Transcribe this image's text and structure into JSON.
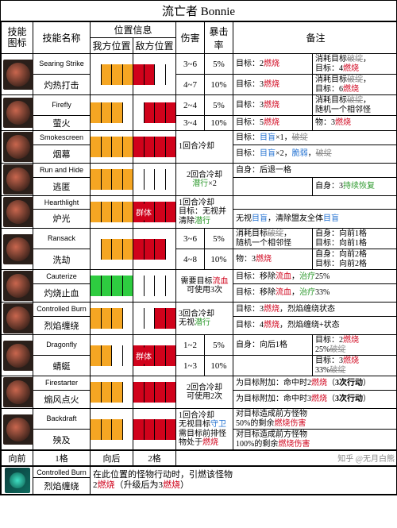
{
  "title": "流亡者 Bonnie",
  "columns": {
    "icon": "技能\n图标",
    "name": "技能名称",
    "posGroup": "位置信息",
    "posAlly": "我方位置",
    "posEnemy": "敌方位置",
    "dmg": "伤害",
    "crit": "暴击率",
    "note": "备注"
  },
  "groupLabel": "群体",
  "rows": [
    {
      "icon": true,
      "name_en": "Searing Strike",
      "name_cn": "灼热打击",
      "ally": [
        0,
        1,
        1,
        1
      ],
      "enemy": [
        1,
        1,
        0,
        0
      ],
      "base": {
        "dmg": "3~6",
        "crit": "5%",
        "note1": "目标：2<span class='kw-burn'>燃烧</span>",
        "note2": "消耗目标<span class='kw-strike'>破绽</span>，<br>目标：4<span class='kw-burn'>燃烧</span>"
      },
      "up": {
        "dmg": "4~7",
        "crit": "10%",
        "note1": "目标：3<span class='kw-burn'>燃烧</span>",
        "note2": "消耗目标<span class='kw-strike'>破绽</span>，<br>目标：6<span class='kw-burn'>燃烧</span>"
      }
    },
    {
      "icon": true,
      "name_en": "Firefly",
      "name_cn": "萤火",
      "ally": [
        1,
        1,
        1,
        0
      ],
      "enemy": [
        0,
        1,
        1,
        1
      ],
      "base": {
        "dmg": "2~4",
        "crit": "5%",
        "note1": "目标：3<span class='kw-burn'>燃烧</span>",
        "note2": "消耗目标<span class='kw-strike'>破绽</span>，<br>随机一个相邻怪"
      },
      "up": {
        "dmg": "3~4",
        "crit": "10%",
        "note1": "目标：5<span class='kw-burn'>燃烧</span>",
        "note2": "物：3<span class='kw-burn'>燃烧</span>"
      }
    },
    {
      "icon": true,
      "name_en": "Smokescreen",
      "name_cn": "烟幕",
      "ally": [
        1,
        1,
        1,
        1
      ],
      "enemy": [
        1,
        1,
        1,
        1
      ],
      "merged_dmg": "1回合冷却",
      "base": {
        "note1": "目标：<span class='kw-blue'>目盲</span>×1，<span class='kw-strike'>破绽</span>",
        "note2": ""
      },
      "up": {
        "note1": "目标：<span class='kw-blue'>目盲</span>×2，<span class='kw-blue'>脆弱</span>，<span class='kw-strike'>破绽</span>",
        "note2": ""
      }
    },
    {
      "icon": true,
      "name_en": "Run and Hide",
      "name_cn": "逃匿",
      "ally": [
        1,
        1,
        1,
        1
      ],
      "enemy": [
        0,
        0,
        0,
        0
      ],
      "merged_mid": "2回合冷却<br><span class='kw-green'>潜行</span>×2",
      "base": {
        "note1": "自身：后退一格",
        "note2": ""
      },
      "up": {
        "note1": "",
        "note2": "自身：3<span class='kw-green'>持续恢复</span>"
      }
    },
    {
      "icon": true,
      "name_en": "Hearthlight",
      "name_cn": "炉光",
      "ally": [
        1,
        1,
        1,
        1
      ],
      "enemy_group": true,
      "enemy": [
        1,
        1,
        1,
        1
      ],
      "merged_dmg": "1回合冷却<br>目标：无视并清除<span class='kw-green'>潜行</span>",
      "base": {
        "note1": "",
        "note2": ""
      },
      "up": {
        "note1": "无视<span class='kw-blue'>目盲</span>，清除盟友全体<span class='kw-blue'>目盲</span>",
        "note2": ""
      }
    },
    {
      "icon": true,
      "name_en": "Ransack",
      "name_cn": "洗劫",
      "ally": [
        0,
        1,
        1,
        1
      ],
      "enemy": [
        1,
        1,
        1,
        0
      ],
      "base": {
        "dmg": "3~6",
        "crit": "5%",
        "note1": "消耗目标<span class='kw-strike'>破绽</span>，<br>随机一个相邻怪",
        "note2": "自身：向前1格<br>目标：向前1格"
      },
      "up": {
        "dmg": "4~8",
        "crit": "10%",
        "note1": "物：3<span class='kw-burn'>燃烧</span>",
        "note2": "自身：向前2格<br>目标：向前2格"
      }
    },
    {
      "icon": true,
      "name_en": "Cauterize",
      "name_cn": "灼烧止血",
      "ally_heal": [
        1,
        1,
        1,
        1
      ],
      "enemy": [
        0,
        0,
        0,
        0
      ],
      "merged_mid": "需要目标<span class='kw-burn'>流血</span><br>可使用3次",
      "base": {
        "note1": "目标：移除<span class='kw-burn'>流血</span>，<span class='kw-green'>治疗</span>25%",
        "note2": ""
      },
      "up": {
        "note1": "目标：移除<span class='kw-burn'>流血</span>，<span class='kw-green'>治疗</span>33%",
        "note2": ""
      }
    },
    {
      "icon": true,
      "name_en": "Controlled Burn",
      "name_cn": "烈焰缠绕",
      "ally": [
        1,
        1,
        1,
        0
      ],
      "enemy": [
        0,
        0,
        1,
        1
      ],
      "merged_dmg": "3回合冷却<br>无视<span class='kw-green'>潜行</span>",
      "base": {
        "note1": "目标：3<span class='kw-burn'>燃烧</span>，烈焰缠绕状态",
        "note2": ""
      },
      "up": {
        "note1": "目标：4<span class='kw-burn'>燃烧</span>，烈焰缠绕+状态",
        "note2": ""
      }
    },
    {
      "icon": true,
      "name_en": "Dragonfly",
      "name_cn": "蜻蜓",
      "ally": [
        1,
        1,
        0,
        0
      ],
      "enemy_group": true,
      "enemy": [
        1,
        1,
        1,
        1
      ],
      "base": {
        "dmg": "1~2",
        "crit": "5%",
        "note1": "自身：向后1格",
        "note2": "目标：2<span class='kw-burn'>燃烧</span><br>25%<span class='kw-strike'>破绽</span>"
      },
      "up": {
        "dmg": "1~3",
        "crit": "10%",
        "note1": "",
        "note2": "目标：3<span class='kw-burn'>燃烧</span><br>33%<span class='kw-strike'>破绽</span>"
      }
    },
    {
      "icon": true,
      "name_en": "Firestarter",
      "name_cn": "煽风点火",
      "ally": [
        1,
        1,
        1,
        0
      ],
      "enemy": [
        1,
        1,
        1,
        1
      ],
      "merged_mid": "2回合冷却<br>可使用2次",
      "base": {
        "note1": "为目标附加：命中时2<span class='kw-burn'>燃烧</span>（<span class='kw-bold'>3次行动</span>）",
        "note2": ""
      },
      "up": {
        "note1": "为目标附加：命中时3<span class='kw-burn'>燃烧</span>（<span class='kw-bold'>3次行动</span>）",
        "note2": ""
      }
    },
    {
      "icon": true,
      "name_en": "Backdraft",
      "name_cn": "殃及",
      "ally": [
        1,
        1,
        1,
        0
      ],
      "enemy": [
        1,
        1,
        1,
        1
      ],
      "merged_dmg": "1回合冷却<br>无视目标<span class='kw-blue'>守卫</span><br>需目标前排怪物处于<span class='kw-burn'>燃烧</span>",
      "base": {
        "note1": "对目标造成前方怪物<br>50%的剩余<span class='kw-burn'>燃烧伤害</span>",
        "note2": ""
      },
      "up": {
        "note1": "对目标造成前方怪物<br>100%的剩余<span class='kw-burn'>燃烧伤害</span>",
        "note2": ""
      }
    }
  ],
  "movement": {
    "fwd_label": "向前",
    "fwd_val": "1格",
    "back_label": "向后",
    "back_val": "2格"
  },
  "buff": {
    "name_en": "Controlled Burn",
    "name_cn": "烈焰缠绕",
    "desc": "在此位置的怪物行动时，引燃该怪物<br>2<span class='kw-burn'>燃烧</span>（升级后为3<span class='kw-burn'>燃烧</span>）"
  },
  "watermark": "知乎 @无月白熊"
}
